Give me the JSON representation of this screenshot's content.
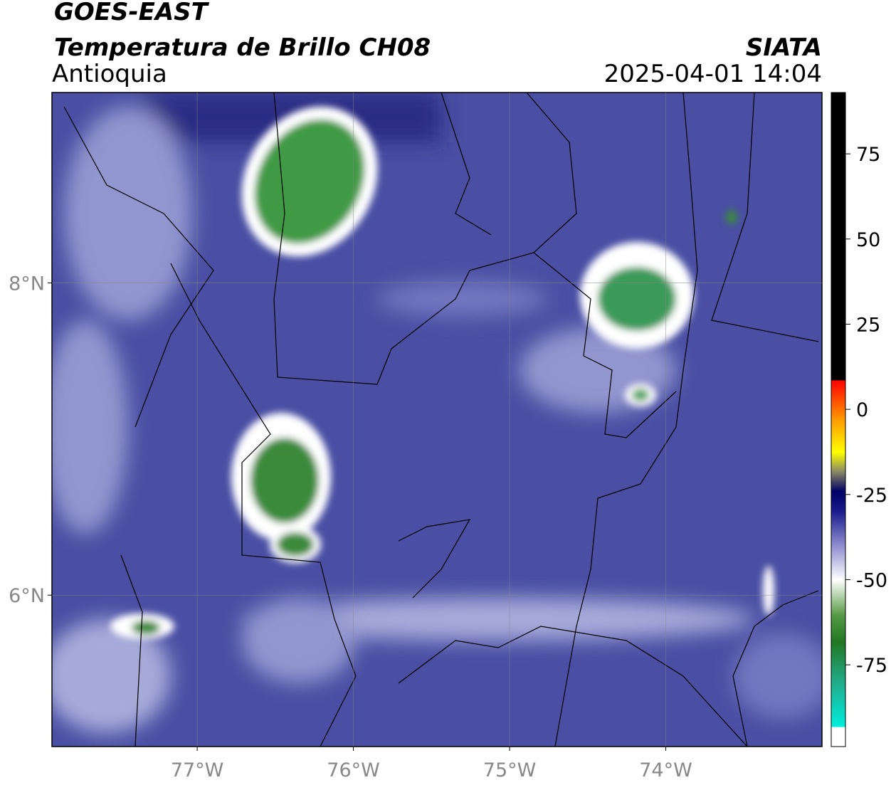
{
  "header": {
    "title": "GOES-EAST",
    "subtitle": "Temperatura de Brillo CH08",
    "region": "Antioquia",
    "source": "SIATA",
    "datetime": "2025-04-01 14:04"
  },
  "map": {
    "xlim": [
      -77.93,
      -73.0
    ],
    "ylim": [
      5.03,
      9.22
    ],
    "xticks": [
      {
        "value": -77,
        "label": "77°W"
      },
      {
        "value": -76,
        "label": "76°W"
      },
      {
        "value": -75,
        "label": "75°W"
      },
      {
        "value": -74,
        "label": "74°W"
      }
    ],
    "yticks": [
      {
        "value": 6,
        "label": "6°N"
      },
      {
        "value": 8,
        "label": "8°N"
      }
    ],
    "grid": true
  },
  "colorbar": {
    "ylim": [
      -99,
      93
    ],
    "yticks": [
      75,
      50,
      25,
      0,
      -25,
      -50,
      -75
    ]
  }
}
